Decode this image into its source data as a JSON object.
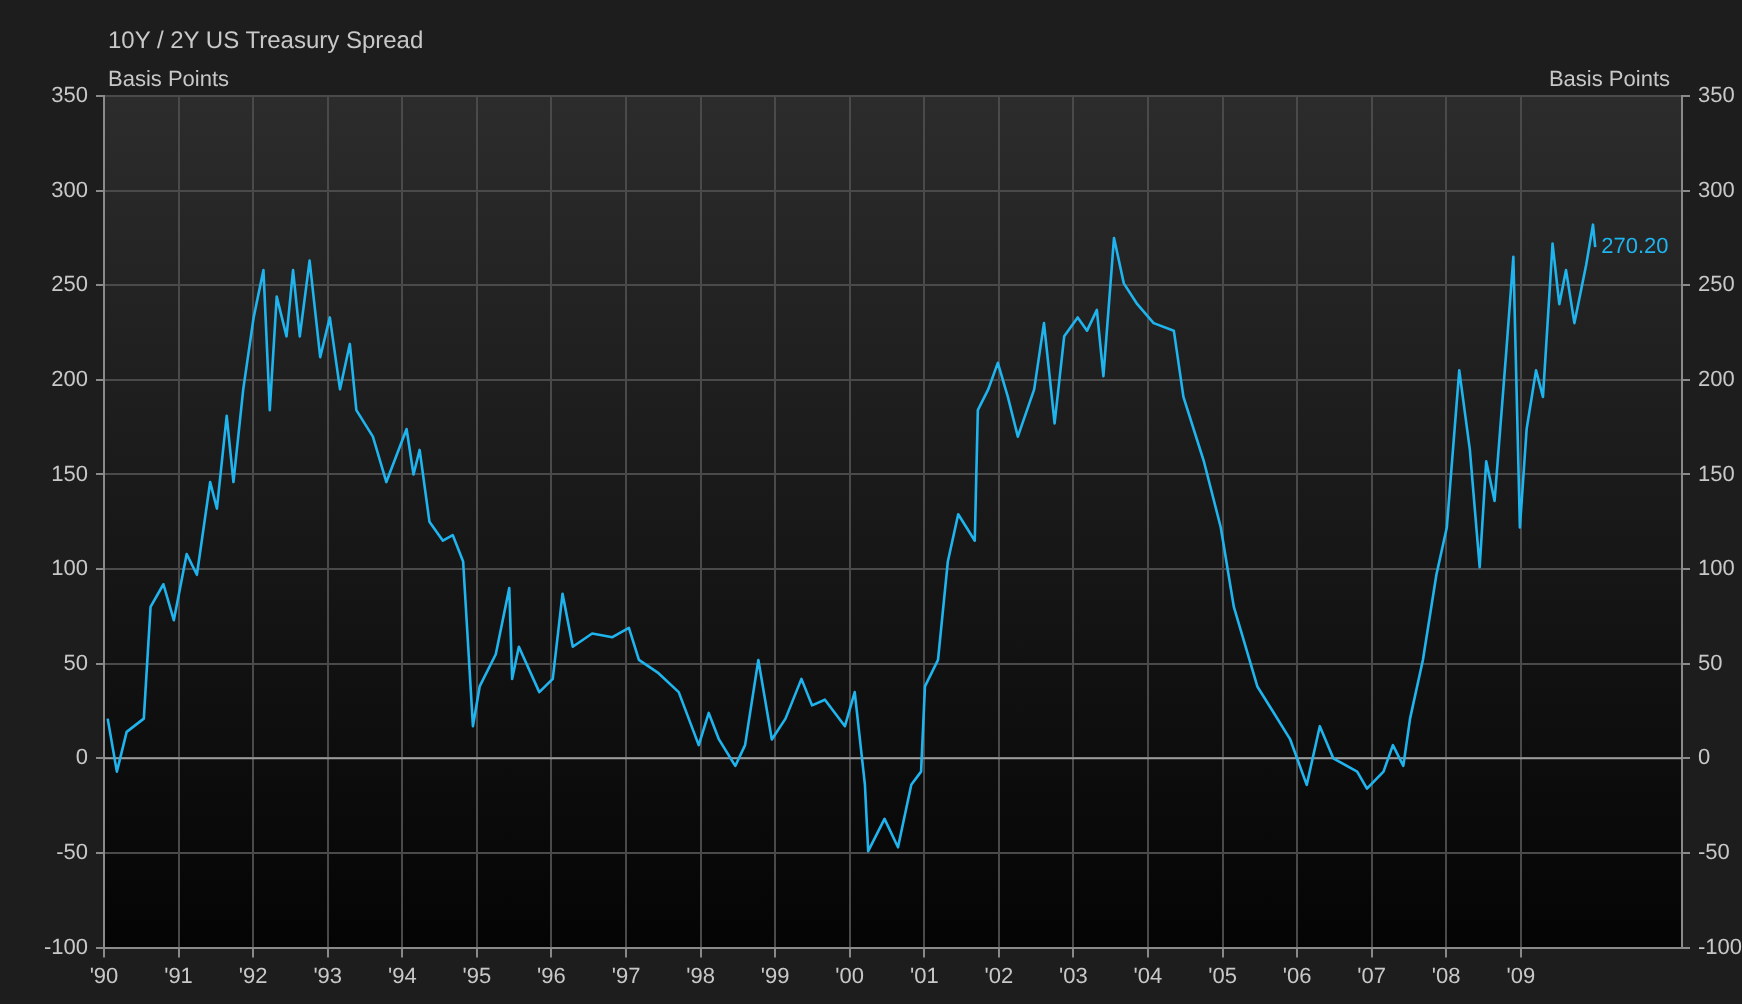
{
  "chart_data": {
    "type": "line",
    "title": "10Y / 2Y US Treasury Spread",
    "ylabel": "Basis Points",
    "y2label": "Basis Points",
    "xlim": [
      "1990-01-01",
      "2011-03-01"
    ],
    "xticks": [
      {
        "value": "1990",
        "label": "'90"
      },
      {
        "value": "1991",
        "label": "'91"
      },
      {
        "value": "1992",
        "label": "'92"
      },
      {
        "value": "1993",
        "label": "'93"
      },
      {
        "value": "1994",
        "label": "'94"
      },
      {
        "value": "1995",
        "label": "'95"
      },
      {
        "value": "1996",
        "label": "'96"
      },
      {
        "value": "1997",
        "label": "'97"
      },
      {
        "value": "1998",
        "label": "'98"
      },
      {
        "value": "1999",
        "label": "'99"
      },
      {
        "value": "2000",
        "label": "'00"
      },
      {
        "value": "2001",
        "label": "'01"
      },
      {
        "value": "2002",
        "label": "'02"
      },
      {
        "value": "2003",
        "label": "'03"
      },
      {
        "value": "2004",
        "label": "'04"
      },
      {
        "value": "2005",
        "label": "'05"
      },
      {
        "value": "2006",
        "label": "'06"
      },
      {
        "value": "2007",
        "label": "'07"
      },
      {
        "value": "2008",
        "label": "'08"
      },
      {
        "value": "2009",
        "label": "'09"
      }
    ],
    "ylim": [
      -100,
      350
    ],
    "yticks": [
      -100,
      -50,
      0,
      50,
      100,
      150,
      200,
      250,
      300,
      350
    ],
    "y2lim": [
      -100,
      350
    ],
    "y2ticks": [
      -100,
      -50,
      0,
      50,
      100,
      150,
      200,
      250,
      300,
      350
    ],
    "grid": true,
    "legend": false,
    "marker": "none",
    "line_style": "solid",
    "ref_lines": [
      {
        "axis": "y",
        "value": 0,
        "color": "#9a9a9a"
      }
    ],
    "annotations": [
      {
        "text": "270.20",
        "x": "2009-12-31",
        "y": 270.2
      }
    ],
    "series": [
      {
        "color": "#1fb4ee",
        "x": [
          "1990-01-19",
          "1990-03-05",
          "1990-04-22",
          "1990-07-15",
          "1990-08-17",
          "1990-10-19",
          "1990-12-09",
          "1991-02-10",
          "1991-04-01",
          "1991-06-05",
          "1991-07-08",
          "1991-08-25",
          "1991-09-27",
          "1991-11-14",
          "1992-01-04",
          "1992-02-21",
          "1992-03-23",
          "1992-04-26",
          "1992-06-13",
          "1992-07-15",
          "1992-08-17",
          "1992-10-04",
          "1992-11-25",
          "1993-01-11",
          "1993-03-02",
          "1993-04-19",
          "1993-05-21",
          "1993-08-10",
          "1993-10-15",
          "1994-01-22",
          "1994-02-25",
          "1994-03-27",
          "1994-05-14",
          "1994-07-19",
          "1994-09-05",
          "1994-10-26",
          "1994-12-13",
          "1995-01-15",
          "1995-04-04",
          "1995-06-09",
          "1995-06-23",
          "1995-07-26",
          "1995-11-03",
          "1996-01-08",
          "1996-02-25",
          "1996-04-15",
          "1996-07-19",
          "1996-10-26",
          "1997-01-15",
          "1997-03-05",
          "1997-06-09",
          "1997-09-16",
          "1997-12-23",
          "1998-02-10",
          "1998-04-01",
          "1998-06-20",
          "1998-08-07",
          "1998-10-11",
          "1998-12-16",
          "1999-02-21",
          "1999-05-10",
          "1999-07-01",
          "1999-09-02",
          "1999-12-09",
          "2000-01-26",
          "2000-03-16",
          "2000-04-01",
          "2000-06-20",
          "2000-08-25",
          "2000-10-29",
          "2000-12-16",
          "2001-01-04",
          "2001-03-09",
          "2001-04-26",
          "2001-06-16",
          "2001-09-05",
          "2001-09-20",
          "2001-11-10",
          "2001-12-27",
          "2002-02-14",
          "2002-04-04",
          "2002-06-23",
          "2002-08-10",
          "2002-10-01",
          "2002-11-17",
          "2003-01-22",
          "2003-03-09",
          "2003-04-26",
          "2003-05-28",
          "2003-07-19",
          "2003-09-05",
          "2003-11-10",
          "2004-01-29",
          "2004-05-07",
          "2004-06-23",
          "2004-10-01",
          "2004-12-23",
          "2005-02-25",
          "2005-06-20",
          "2005-09-09",
          "2005-11-28",
          "2006-02-17",
          "2006-04-22",
          "2006-06-27",
          "2006-10-22",
          "2006-12-09",
          "2007-02-28",
          "2007-04-15",
          "2007-06-05",
          "2007-07-08",
          "2007-09-09",
          "2007-11-14",
          "2008-01-04",
          "2008-03-05",
          "2008-04-26",
          "2008-06-13",
          "2008-07-15",
          "2008-08-25",
          "2008-10-22",
          "2008-11-25",
          "2008-12-27",
          "2009-01-29",
          "2009-03-16",
          "2009-04-19",
          "2009-06-05",
          "2009-07-08",
          "2009-08-10",
          "2009-09-20",
          "2009-11-17",
          "2009-12-20",
          "2009-12-31"
        ],
        "values": [
          21,
          -7,
          14,
          21,
          80,
          92,
          73,
          108,
          97,
          146,
          132,
          181,
          146,
          195,
          233,
          258,
          184,
          244,
          223,
          258,
          223,
          263,
          212,
          233,
          195,
          219,
          184,
          170,
          146,
          174,
          150,
          163,
          125,
          115,
          118,
          104,
          17,
          38,
          55,
          90,
          42,
          59,
          35,
          42,
          87,
          59,
          66,
          64,
          69,
          52,
          45,
          35,
          7,
          24,
          10,
          -4,
          7,
          52,
          10,
          21,
          42,
          28,
          31,
          17,
          35,
          -14,
          -49,
          -32,
          -47,
          -14,
          -7,
          38,
          52,
          104,
          129,
          115,
          184,
          195,
          209,
          191,
          170,
          195,
          230,
          177,
          223,
          233,
          226,
          237,
          202,
          275,
          251,
          240,
          230,
          226,
          191,
          157,
          122,
          80,
          38,
          24,
          10,
          -14,
          17,
          0,
          -7,
          -16,
          -7,
          7,
          -4,
          21,
          52,
          97,
          122,
          205,
          163,
          101,
          157,
          136,
          216,
          265,
          122,
          174,
          205,
          191,
          272,
          240,
          258,
          230,
          261,
          282,
          270.2
        ]
      }
    ]
  }
}
